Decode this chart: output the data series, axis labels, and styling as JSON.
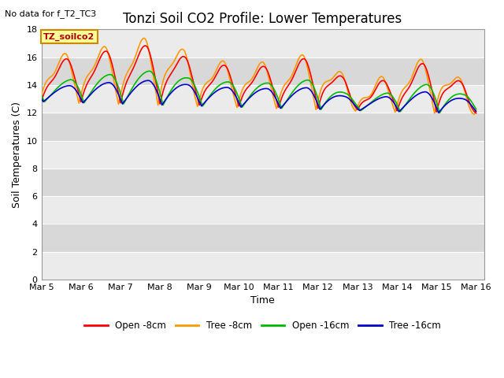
{
  "title": "Tonzi Soil CO2 Profile: Lower Temperatures",
  "subtitle": "No data for f_T2_TC3",
  "xlabel": "Time",
  "ylabel": "Soil Temperatures (C)",
  "ylim": [
    0,
    18
  ],
  "yticks": [
    0,
    2,
    4,
    6,
    8,
    10,
    12,
    14,
    16,
    18
  ],
  "xlim_days": [
    5.0,
    16.2
  ],
  "xtick_positions": [
    5,
    6,
    7,
    8,
    9,
    10,
    11,
    12,
    13,
    14,
    15,
    16
  ],
  "xtick_labels": [
    "Mar 5",
    "Mar 6",
    "Mar 7",
    "Mar 8",
    "Mar 9",
    "Mar 10",
    "Mar 11",
    "Mar 12",
    "Mar 13",
    "Mar 14",
    "Mar 15",
    "Mar 16"
  ],
  "legend_labels": [
    "Open -8cm",
    "Tree -8cm",
    "Open -16cm",
    "Tree -16cm"
  ],
  "legend_colors": [
    "#ff0000",
    "#ff9900",
    "#00bb00",
    "#0000cc"
  ],
  "line_width": 1.2,
  "background_color": "#ffffff",
  "plot_bg_dark": "#d8d8d8",
  "plot_bg_light": "#ebebeb",
  "annotation_label": "TZ_soilco2",
  "annotation_box_color": "#ffff99",
  "annotation_box_edge": "#cc8800",
  "title_fontsize": 12,
  "axis_fontsize": 9,
  "tick_fontsize": 8,
  "subtitle_fontsize": 8
}
